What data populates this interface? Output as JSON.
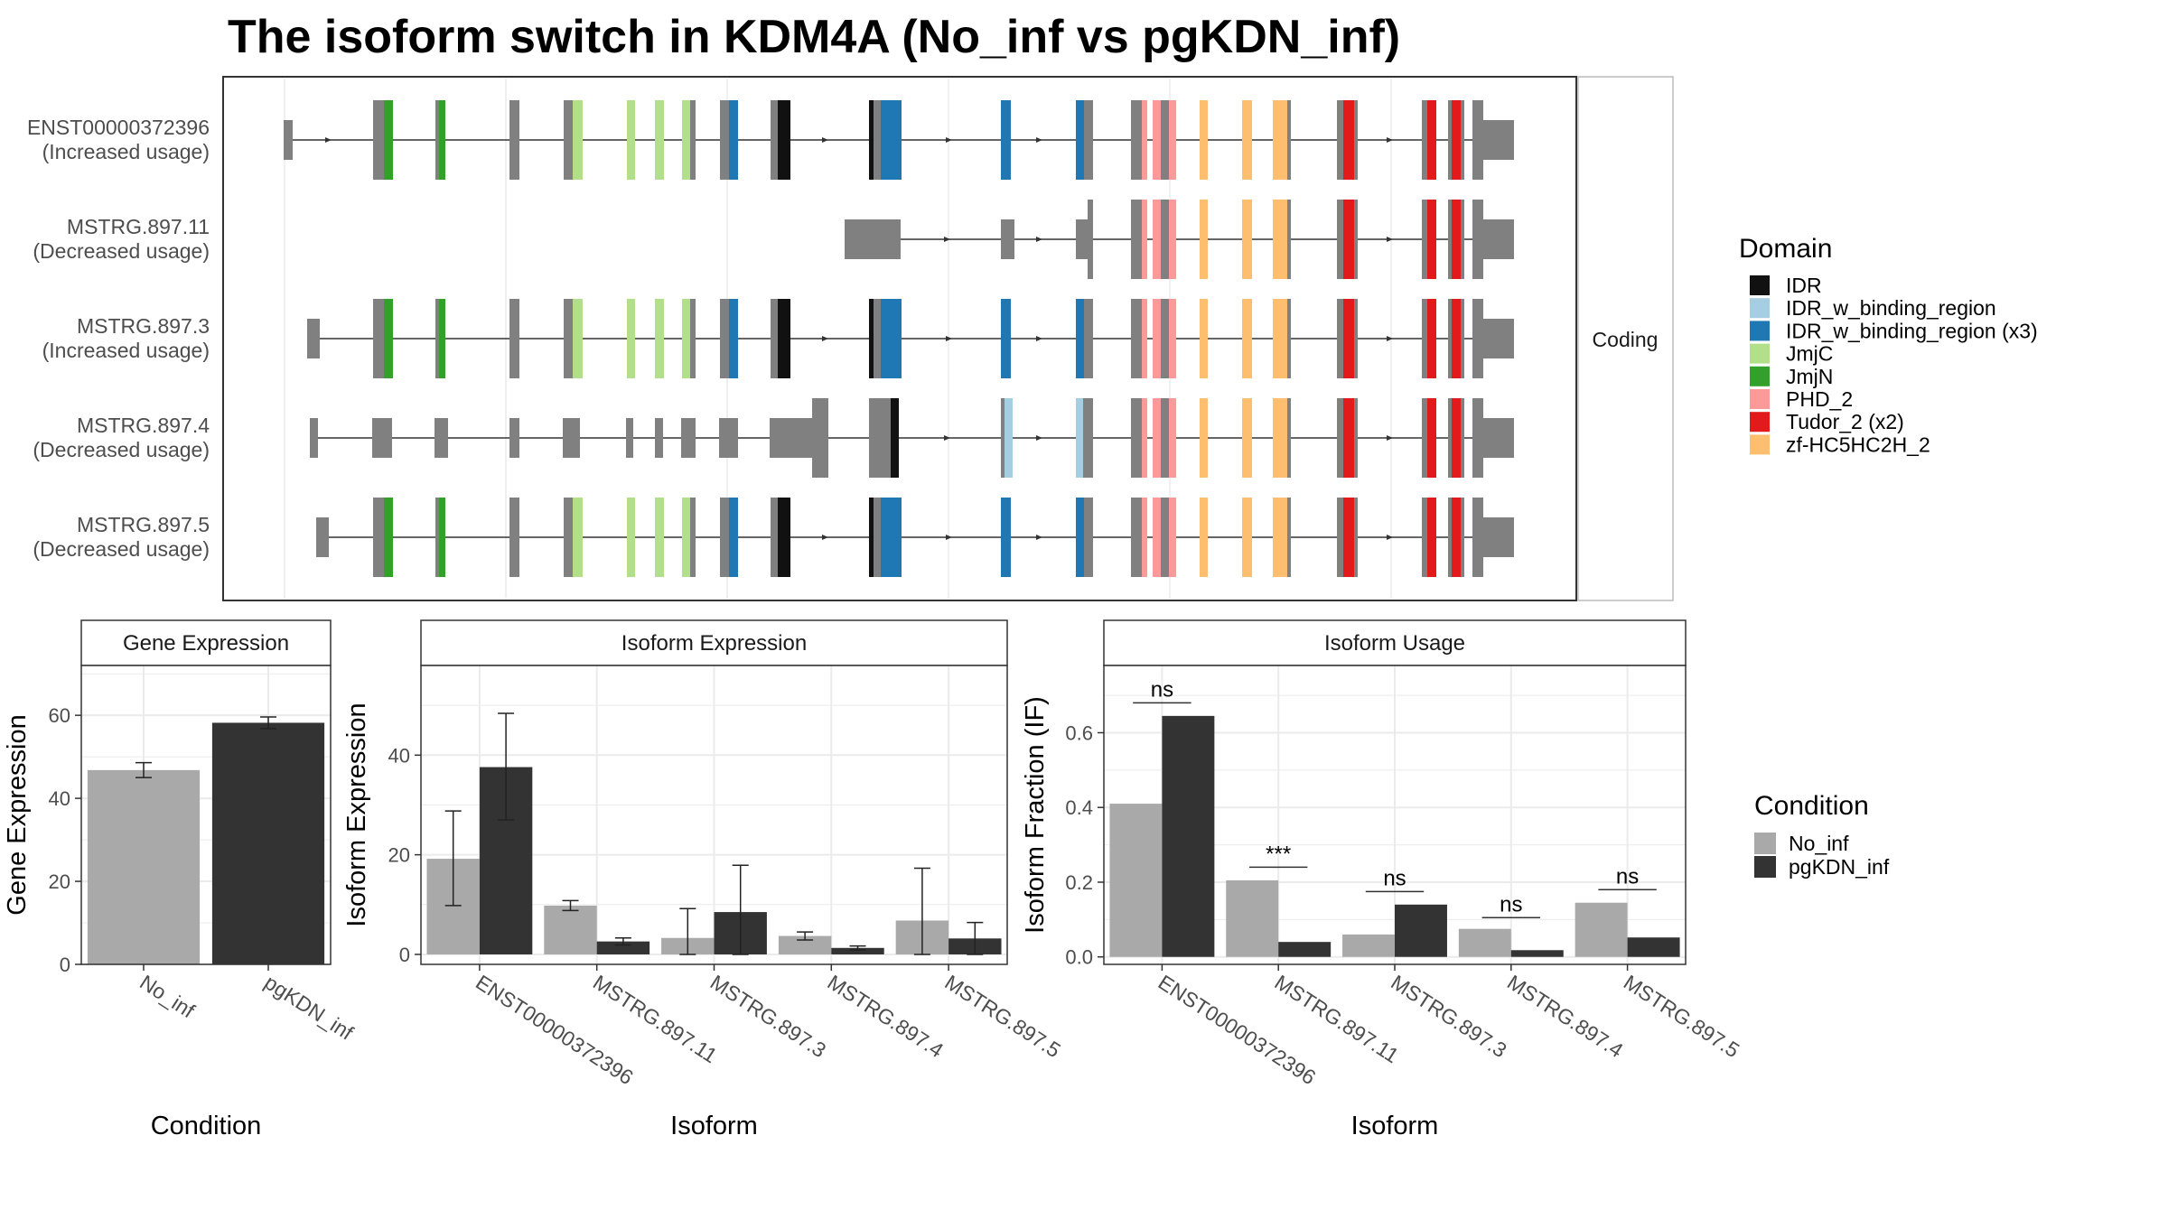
{
  "title": "The isoform switch in KDM4A (No_inf vs pgKDN_inf)",
  "structure": {
    "strip_label": "Coding",
    "isoforms": [
      {
        "name": "ENST00000372396",
        "usage": "(Increased usage)"
      },
      {
        "name": "MSTRG.897.11",
        "usage": "(Decreased usage)"
      },
      {
        "name": "MSTRG.897.3",
        "usage": "(Increased usage)"
      },
      {
        "name": "MSTRG.897.4",
        "usage": "(Decreased usage)"
      },
      {
        "name": "MSTRG.897.5",
        "usage": "(Decreased usage)"
      }
    ]
  },
  "domain_legend": {
    "title": "Domain",
    "items": [
      {
        "label": "IDR",
        "color": "#111111"
      },
      {
        "label": "IDR_w_binding_region",
        "color": "#a6cee3"
      },
      {
        "label": "IDR_w_binding_region (x3)",
        "color": "#1f78b4"
      },
      {
        "label": "JmjC",
        "color": "#b2df8a"
      },
      {
        "label": "JmjN",
        "color": "#33a02c"
      },
      {
        "label": "PHD_2",
        "color": "#fb9a99"
      },
      {
        "label": "Tudor_2 (x2)",
        "color": "#e31a1c"
      },
      {
        "label": "zf-HC5HC2H_2",
        "color": "#fdbf6f"
      }
    ]
  },
  "condition_legend": {
    "title": "Condition",
    "items": [
      {
        "label": "No_inf",
        "color": "#a9a9a9"
      },
      {
        "label": "pgKDN_inf",
        "color": "#333333"
      }
    ]
  },
  "chart_data": [
    {
      "type": "bar",
      "title": "Gene Expression",
      "xlabel": "Condition",
      "ylabel": "Gene Expression",
      "categories": [
        "No_inf",
        "pgKDN_inf"
      ],
      "ylim": [
        0,
        72
      ],
      "yticks": [
        0,
        20,
        40,
        60
      ],
      "series": [
        {
          "values": [
            46.8,
            58.2
          ],
          "err_low": [
            45.0,
            56.8
          ],
          "err_high": [
            48.6,
            59.6
          ]
        }
      ],
      "colors": [
        "#a9a9a9",
        "#333333"
      ]
    },
    {
      "type": "bar",
      "title": "Isoform Expression",
      "xlabel": "Isoform",
      "ylabel": "Isoform Expression",
      "categories": [
        "ENST00000372396",
        "MSTRG.897.11",
        "MSTRG.897.3",
        "MSTRG.897.4",
        "MSTRG.897.5"
      ],
      "ylim": [
        -2,
        58
      ],
      "yticks": [
        0,
        20,
        40
      ],
      "series": [
        {
          "name": "No_inf",
          "values": [
            19.2,
            9.8,
            3.3,
            3.7,
            6.8
          ],
          "err_low": [
            9.8,
            8.8,
            0.0,
            2.9,
            0.0
          ],
          "err_high": [
            28.8,
            10.8,
            9.2,
            4.5,
            17.3
          ]
        },
        {
          "name": "pgKDN_inf",
          "values": [
            37.6,
            2.6,
            8.5,
            1.3,
            3.2
          ],
          "err_low": [
            27.0,
            1.9,
            0.0,
            0.9,
            0.0
          ],
          "err_high": [
            48.4,
            3.3,
            17.9,
            1.7,
            6.4
          ]
        }
      ],
      "colors": [
        "#a9a9a9",
        "#333333"
      ]
    },
    {
      "type": "bar",
      "title": "Isoform Usage",
      "xlabel": "Isoform",
      "ylabel": "Isoform Fraction (IF)",
      "categories": [
        "ENST00000372396",
        "MSTRG.897.11",
        "MSTRG.897.3",
        "MSTRG.897.4",
        "MSTRG.897.5"
      ],
      "ylim": [
        -0.02,
        0.78
      ],
      "yticks": [
        "0.0",
        "0.2",
        "0.4",
        "0.6"
      ],
      "series": [
        {
          "name": "No_inf",
          "values": [
            0.41,
            0.205,
            0.06,
            0.075,
            0.145
          ]
        },
        {
          "name": "pgKDN_inf",
          "values": [
            0.645,
            0.04,
            0.14,
            0.018,
            0.052
          ]
        }
      ],
      "annotations": [
        {
          "label": "ns",
          "y": 0.68
        },
        {
          "label": "***",
          "y": 0.24
        },
        {
          "label": "ns",
          "y": 0.175
        },
        {
          "label": "ns",
          "y": 0.105
        },
        {
          "label": "ns",
          "y": 0.18
        }
      ],
      "colors": [
        "#a9a9a9",
        "#333333"
      ]
    }
  ]
}
